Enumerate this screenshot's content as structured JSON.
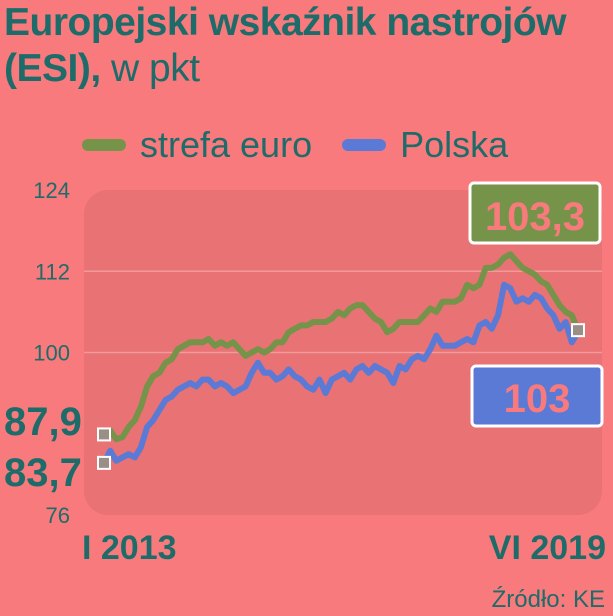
{
  "chart_data": {
    "type": "line",
    "title": "Europejski wskaźnik nastrojów (ESI),",
    "unit": "w pkt",
    "ylim": [
      76,
      124
    ],
    "y_ticks": [
      "124",
      "112",
      "100",
      "76"
    ],
    "x_tick_labels": [
      "I 2013",
      "VI 2019"
    ],
    "x": [
      "2013-01",
      "2013-02",
      "2013-03",
      "2013-04",
      "2013-05",
      "2013-06",
      "2013-07",
      "2013-08",
      "2013-09",
      "2013-10",
      "2013-11",
      "2013-12",
      "2014-01",
      "2014-02",
      "2014-03",
      "2014-04",
      "2014-05",
      "2014-06",
      "2014-07",
      "2014-08",
      "2014-09",
      "2014-10",
      "2014-11",
      "2014-12",
      "2015-01",
      "2015-02",
      "2015-03",
      "2015-04",
      "2015-05",
      "2015-06",
      "2015-07",
      "2015-08",
      "2015-09",
      "2015-10",
      "2015-11",
      "2015-12",
      "2016-01",
      "2016-02",
      "2016-03",
      "2016-04",
      "2016-05",
      "2016-06",
      "2016-07",
      "2016-08",
      "2016-09",
      "2016-10",
      "2016-11",
      "2016-12",
      "2017-01",
      "2017-02",
      "2017-03",
      "2017-04",
      "2017-05",
      "2017-06",
      "2017-07",
      "2017-08",
      "2017-09",
      "2017-10",
      "2017-11",
      "2017-12",
      "2018-01",
      "2018-02",
      "2018-03",
      "2018-04",
      "2018-05",
      "2018-06",
      "2018-07",
      "2018-08",
      "2018-09",
      "2018-10",
      "2018-11",
      "2018-12",
      "2019-01",
      "2019-02",
      "2019-03",
      "2019-04",
      "2019-05",
      "2019-06"
    ],
    "series": [
      {
        "name": "strefa euro",
        "color": "#76934a",
        "values": [
          87.9,
          88.5,
          87.2,
          87.5,
          89.0,
          90.0,
          92.0,
          95.0,
          96.5,
          97.0,
          98.5,
          99.0,
          100.5,
          101.0,
          101.5,
          101.5,
          101.5,
          102.0,
          101.0,
          101.5,
          101.0,
          101.5,
          100.5,
          99.5,
          100.0,
          100.5,
          100.0,
          100.5,
          101.5,
          101.5,
          103.0,
          103.5,
          104.0,
          104.0,
          104.5,
          104.5,
          104.5,
          105.0,
          106.0,
          105.5,
          106.5,
          107.0,
          107.0,
          106.0,
          105.0,
          104.5,
          103.0,
          103.5,
          104.5,
          104.5,
          104.5,
          104.5,
          105.5,
          106.5,
          106.0,
          107.5,
          107.5,
          107.5,
          108.0,
          110.0,
          109.5,
          110.0,
          112.5,
          112.5,
          113.0,
          114.0,
          114.5,
          113.5,
          112.5,
          112.0,
          111.5,
          110.5,
          110.0,
          108.5,
          107.0,
          106.0,
          105.5,
          103.3
        ]
      },
      {
        "name": "Polska",
        "color": "#5b7ad6",
        "values": [
          83.7,
          85.5,
          84.0,
          84.5,
          85.0,
          84.5,
          86.0,
          89.0,
          90.0,
          91.5,
          93.0,
          93.5,
          94.5,
          95.0,
          95.5,
          95.0,
          96.0,
          96.0,
          95.0,
          95.5,
          95.0,
          94.0,
          94.5,
          95.0,
          97.0,
          98.5,
          97.0,
          97.0,
          96.0,
          96.5,
          97.5,
          96.5,
          96.0,
          95.0,
          94.5,
          96.0,
          94.0,
          96.0,
          96.5,
          97.0,
          96.0,
          97.5,
          98.0,
          97.0,
          98.0,
          97.5,
          97.0,
          95.5,
          98.0,
          97.5,
          99.0,
          99.5,
          99.0,
          100.5,
          102.5,
          101.0,
          101.0,
          101.0,
          101.5,
          102.0,
          101.5,
          104.0,
          104.5,
          103.5,
          105.5,
          110.0,
          109.5,
          107.5,
          108.0,
          107.5,
          108.5,
          108.0,
          106.5,
          105.5,
          103.5,
          104.5,
          101.5,
          103.0
        ]
      }
    ],
    "labels": {
      "end_euro": "103,3",
      "end_pl": "103",
      "start_euro": "87,9",
      "start_pl": "83,7"
    }
  },
  "source": "Źródło: KE"
}
